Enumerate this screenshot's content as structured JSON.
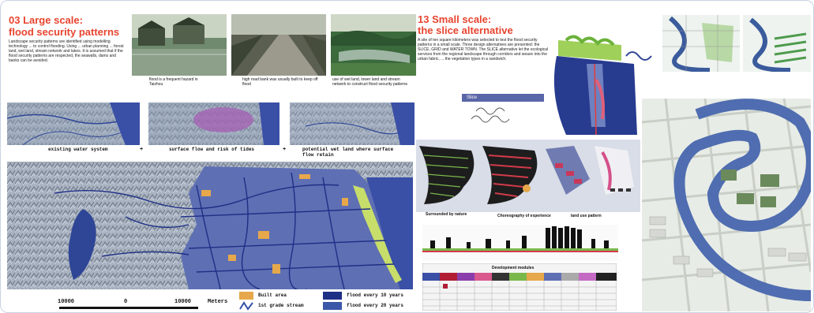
{
  "left": {
    "title_line1": "03 Large scale:",
    "title_line2": "flood security patterns",
    "description": "Landscape security patterns are identified using modelling technology ... to control flooding. Using ... urban planning ... forest land, wet land, stream network and lakes. It is assumed that if the flood security patterns are respected, the seawalls, dams and banks can be avoided.",
    "photo_captions": [
      "flood is a frequent hazard in Taizhou",
      "high road bank was usually built to keep off flood",
      "use of wet land, lower land and stream network to construct flood security patterns"
    ],
    "strip_labels": [
      "existing water system",
      "surface flow and risk of tides",
      "potential wet land where surface flow retain"
    ],
    "strip_plus": "+",
    "scale": {
      "left": "10000",
      "mid": "0",
      "right": "10000",
      "unit": "Meters"
    },
    "legend": [
      {
        "label": "Built area",
        "color": "#e6a84a"
      },
      {
        "label": "1st grade stream",
        "color": "#3350a6"
      },
      {
        "label": "flood every 10 years",
        "color": "#1e2f86"
      },
      {
        "label": "flood every 20 years",
        "color": "#3a57a8"
      }
    ]
  },
  "right": {
    "title_line1": "13 Small scale:",
    "title_line2": "the slice alternative",
    "description": "A site of ten square kilometers was selected to test the flood security patterns in a small scale. Three design alternatives are presented: the SLICE, GRID and WATER TOWN. The SLICE alternative let the ecological services from the regional landscape through corridors and weave into the urban fabric, ... the vegetation types in a sandwich.",
    "label_box": "Slice",
    "diagram_captions": [
      "Surrounded by nature",
      "Choreography of experience",
      "land use pattern"
    ],
    "modules_title": "Development modules"
  },
  "colors": {
    "title_red": "#e8442f",
    "map_blue": "#3a4fa6",
    "dark_blue": "#1e2f86",
    "river_green": "#b6d76b",
    "built_orange": "#e6a84a"
  }
}
